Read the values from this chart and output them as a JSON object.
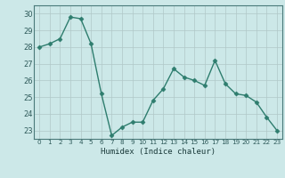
{
  "x": [
    0,
    1,
    2,
    3,
    4,
    5,
    6,
    7,
    8,
    9,
    10,
    11,
    12,
    13,
    14,
    15,
    16,
    17,
    18,
    19,
    20,
    21,
    22,
    23
  ],
  "y": [
    28.0,
    28.2,
    28.5,
    29.8,
    29.7,
    28.2,
    25.2,
    22.7,
    23.2,
    23.5,
    23.5,
    24.8,
    25.5,
    26.7,
    26.2,
    26.0,
    25.7,
    27.2,
    25.8,
    25.2,
    25.1,
    24.7,
    23.8,
    23.0
  ],
  "xlabel": "Humidex (Indice chaleur)",
  "ylim": [
    22.5,
    30.5
  ],
  "yticks": [
    23,
    24,
    25,
    26,
    27,
    28,
    29,
    30
  ],
  "xticks": [
    0,
    1,
    2,
    3,
    4,
    5,
    6,
    7,
    8,
    9,
    10,
    11,
    12,
    13,
    14,
    15,
    16,
    17,
    18,
    19,
    20,
    21,
    22,
    23
  ],
  "line_color": "#2e7d6e",
  "marker": "D",
  "marker_size": 2.5,
  "bg_color": "#cce8e8",
  "grid_color": "#b0c8c8",
  "tick_color": "#2e5a5a",
  "xlabel_color": "#1a3a3a"
}
